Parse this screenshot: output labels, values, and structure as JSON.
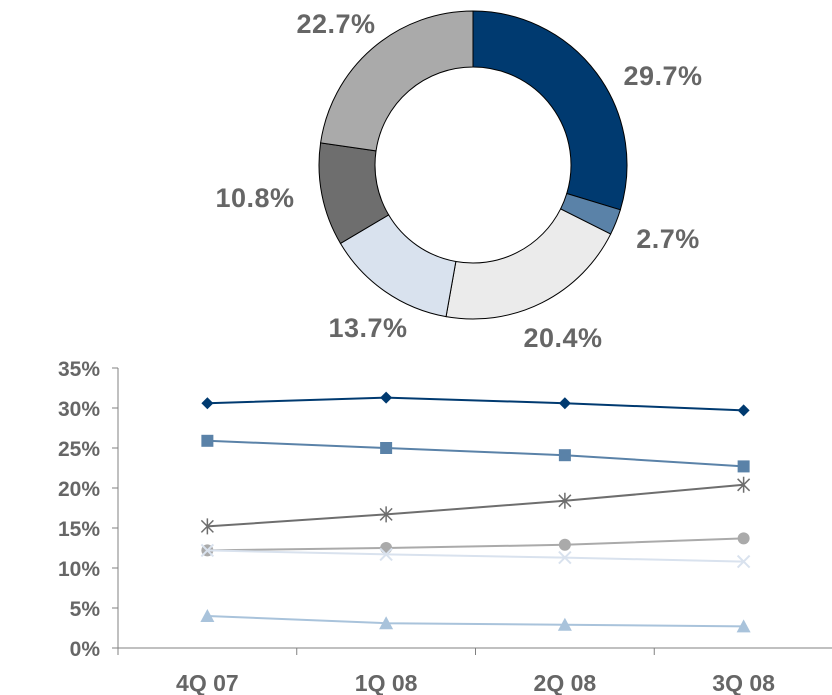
{
  "chart_data": [
    {
      "type": "pie",
      "subtype": "donut",
      "slices": [
        {
          "label": "29.7%",
          "value": 29.7,
          "color": "#003A70"
        },
        {
          "label": "2.7%",
          "value": 2.7,
          "color": "#5A82A8"
        },
        {
          "label": "20.4%",
          "value": 20.4,
          "color": "#EBEBEB"
        },
        {
          "label": "13.7%",
          "value": 13.7,
          "color": "#D9E2EE"
        },
        {
          "label": "10.8%",
          "value": 10.8,
          "color": "#6E6E6E"
        },
        {
          "label": "22.7%",
          "value": 22.7,
          "color": "#AAAAAA"
        }
      ]
    },
    {
      "type": "line",
      "categories": [
        "4Q 07",
        "1Q 08",
        "2Q 08",
        "3Q 08"
      ],
      "ylim": [
        0,
        35
      ],
      "yticks": [
        0,
        5,
        10,
        15,
        20,
        25,
        30,
        35
      ],
      "ytick_labels": [
        "0%",
        "5%",
        "10%",
        "15%",
        "20%",
        "25%",
        "30%",
        "35%"
      ],
      "grid": false,
      "legend": "none",
      "series": [
        {
          "values": [
            30.6,
            31.3,
            30.6,
            29.7
          ],
          "color": "#003A70",
          "marker": "diamond"
        },
        {
          "values": [
            25.9,
            25.0,
            24.1,
            22.7
          ],
          "color": "#5A82A8",
          "marker": "square"
        },
        {
          "values": [
            15.2,
            16.7,
            18.4,
            20.4
          ],
          "color": "#6E6E6E",
          "marker": "star"
        },
        {
          "values": [
            12.2,
            12.5,
            12.9,
            13.7
          ],
          "color": "#AAAAAA",
          "marker": "circle"
        },
        {
          "values": [
            12.2,
            11.7,
            11.3,
            10.8
          ],
          "color": "#D9E2EE",
          "marker": "x"
        },
        {
          "values": [
            4.0,
            3.1,
            2.9,
            2.7
          ],
          "color": "#A9C3DB",
          "marker": "triangle"
        }
      ]
    }
  ]
}
